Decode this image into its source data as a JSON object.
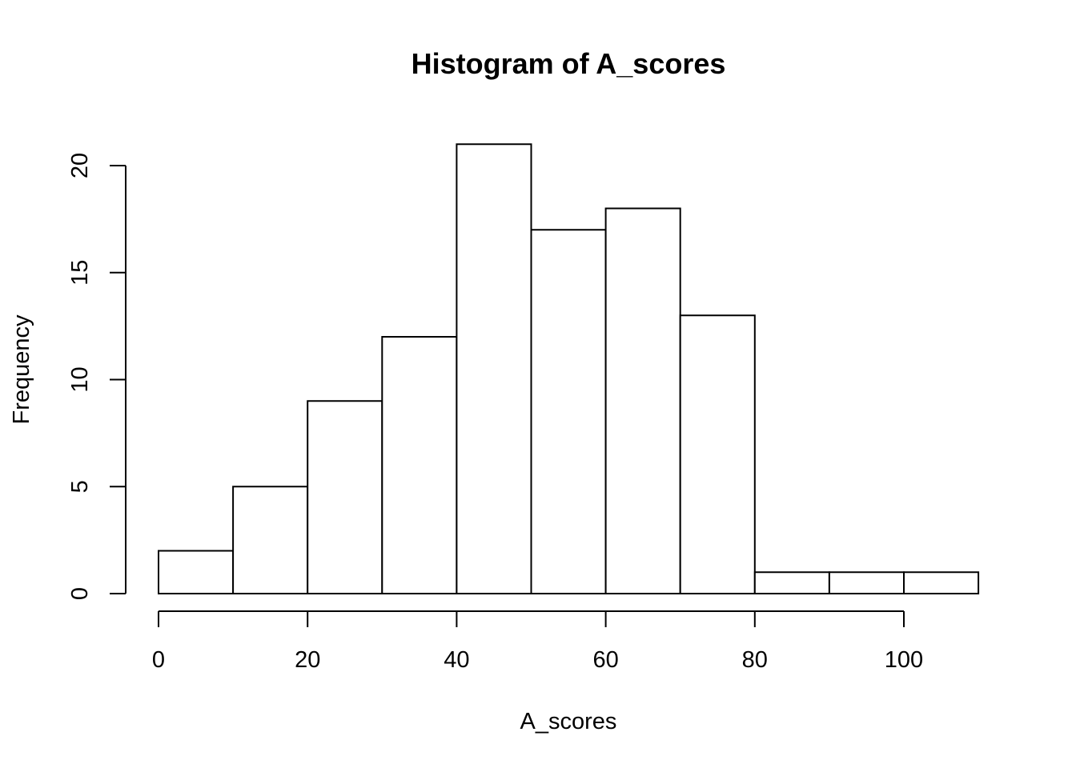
{
  "chart_data": {
    "type": "bar",
    "title": "Histogram of A_scores",
    "xlabel": "A_scores",
    "ylabel": "Frequency",
    "bins": [
      {
        "start": 0,
        "end": 10,
        "count": 2
      },
      {
        "start": 10,
        "end": 20,
        "count": 5
      },
      {
        "start": 20,
        "end": 30,
        "count": 9
      },
      {
        "start": 30,
        "end": 40,
        "count": 12
      },
      {
        "start": 40,
        "end": 50,
        "count": 21
      },
      {
        "start": 50,
        "end": 60,
        "count": 17
      },
      {
        "start": 60,
        "end": 70,
        "count": 18
      },
      {
        "start": 70,
        "end": 80,
        "count": 13
      },
      {
        "start": 80,
        "end": 90,
        "count": 1
      },
      {
        "start": 90,
        "end": 100,
        "count": 1
      },
      {
        "start": 100,
        "end": 110,
        "count": 1
      }
    ],
    "xticks": [
      0,
      20,
      40,
      60,
      80,
      100
    ],
    "yticks": [
      0,
      5,
      10,
      15,
      20
    ],
    "xlim": [
      0,
      110
    ],
    "ylim": [
      0,
      21
    ],
    "grid": false,
    "legend": "none"
  }
}
